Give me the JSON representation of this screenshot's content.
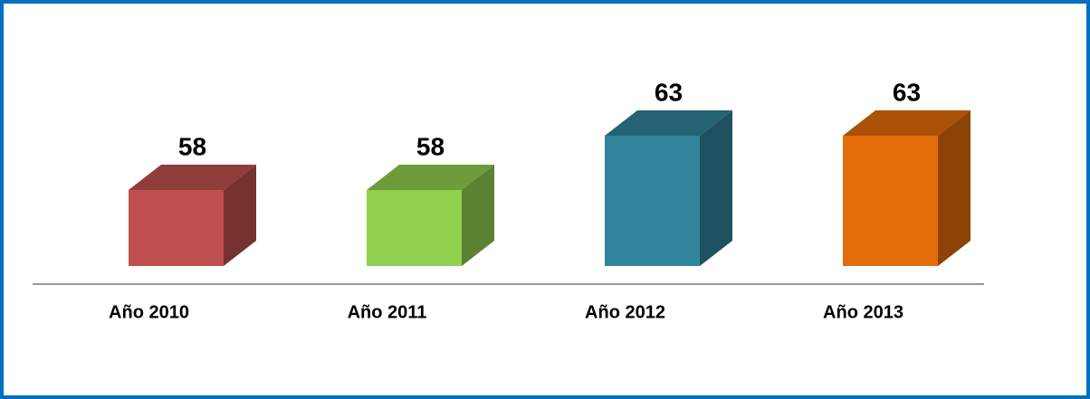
{
  "chart_data": {
    "type": "bar3d",
    "categories": [
      "Año 2010",
      "Año 2011",
      "Año 2012",
      "Año 2013"
    ],
    "values": [
      58,
      58,
      63,
      63
    ],
    "colors": [
      "#c0504d",
      "#92d050",
      "#31849b",
      "#e46c0a"
    ],
    "ylim": [
      51,
      66
    ]
  }
}
